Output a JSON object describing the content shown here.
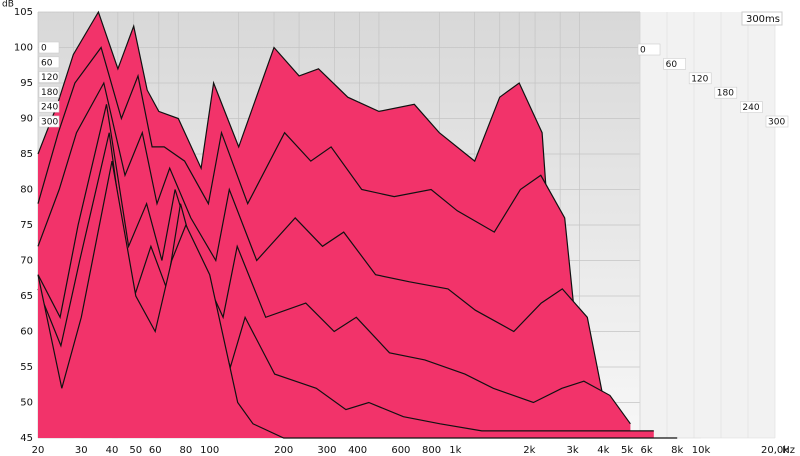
{
  "chart_data": {
    "type": "waterfall",
    "y_label": "dB",
    "x_unit": "Hz",
    "time_label": "300ms",
    "x": [
      20,
      25,
      30,
      40,
      50,
      60,
      70,
      80,
      100,
      130,
      150,
      200,
      300,
      400,
      500,
      700,
      1000,
      1500,
      2000,
      3000,
      4000,
      5000,
      6500,
      8000
    ],
    "log_x": true,
    "xlim": [
      20,
      20000
    ],
    "xticks": [
      20,
      30,
      40,
      50,
      60,
      80,
      100,
      200,
      300,
      400,
      600,
      800,
      {
        "value": 1000,
        "label": "1k"
      },
      {
        "value": 2000,
        "label": "2k"
      },
      {
        "value": 3000,
        "label": "3k"
      },
      {
        "value": 4000,
        "label": "4k"
      },
      {
        "value": 5000,
        "label": "5k"
      },
      {
        "value": 6000,
        "label": "6k"
      },
      {
        "value": 8000,
        "label": "8k"
      },
      {
        "value": 10000,
        "label": "10k"
      },
      {
        "value": 20000,
        "label": "20,0k"
      }
    ],
    "ylim": [
      45,
      105
    ],
    "yticks": [
      45,
      50,
      55,
      60,
      65,
      70,
      75,
      80,
      85,
      90,
      95,
      100,
      105
    ],
    "tlim": [
      0,
      300
    ],
    "tticks": [
      0,
      60,
      120,
      180,
      240,
      300
    ],
    "grid": true,
    "color": "#f2336a",
    "line_color": "#111111",
    "series": [
      {
        "time": 0,
        "values": [
          85,
          92,
          99,
          105,
          97,
          103,
          94,
          91,
          90,
          83,
          95,
          86,
          100,
          96,
          97,
          93,
          91,
          92,
          88,
          84,
          93,
          95,
          88,
          52
        ]
      },
      {
        "time": 60,
        "values": [
          78,
          88,
          95,
          100,
          90,
          96,
          86,
          86,
          84,
          78,
          88,
          78,
          88,
          84,
          86,
          80,
          79,
          80,
          77,
          74,
          80,
          82,
          76,
          50
        ]
      },
      {
        "time": 120,
        "values": [
          72,
          80,
          88,
          95,
          82,
          88,
          78,
          83,
          76,
          70,
          80,
          70,
          76,
          72,
          74,
          68,
          67,
          66,
          63,
          60,
          64,
          66,
          62,
          48
        ]
      },
      {
        "time": 180,
        "values": [
          68,
          62,
          75,
          92,
          72,
          78,
          70,
          80,
          70,
          62,
          72,
          62,
          64,
          60,
          62,
          57,
          56,
          54,
          52,
          50,
          52,
          53,
          51,
          47
        ]
      },
      {
        "time": 240,
        "values": [
          66,
          58,
          70,
          88,
          64,
          72,
          66,
          78,
          66,
          55,
          62,
          54,
          52,
          49,
          50,
          48,
          47,
          46,
          46,
          46,
          46,
          46,
          46,
          46
        ]
      },
      {
        "time": 300,
        "values": [
          68,
          52,
          62,
          84,
          65,
          60,
          70,
          75,
          68,
          50,
          47,
          45,
          45,
          45,
          45,
          45,
          45,
          45,
          45,
          45,
          45,
          45,
          45,
          45
        ]
      }
    ]
  }
}
